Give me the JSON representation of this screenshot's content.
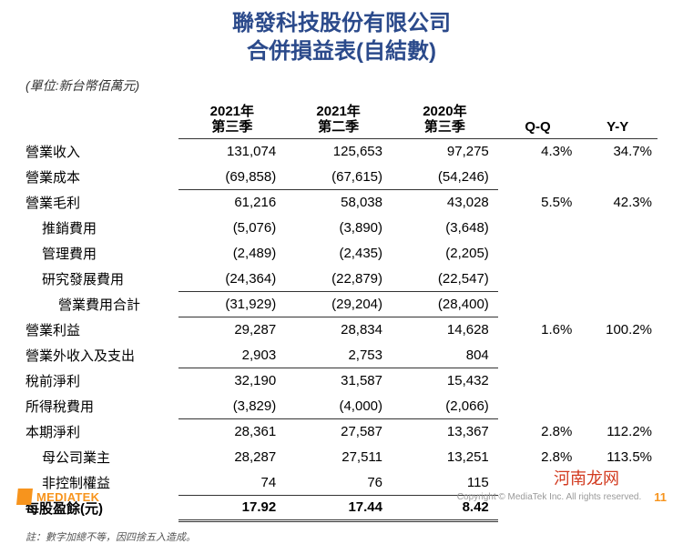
{
  "title": {
    "line1": "聯發科技股份有限公司",
    "line2": "合併損益表(自結數)"
  },
  "unit_label": "(單位:新台幣佰萬元)",
  "columns": {
    "c1": "2021年\n第三季",
    "c2": "2021年\n第二季",
    "c3": "2020年\n第三季",
    "qq": "Q-Q",
    "yy": "Y-Y"
  },
  "rows": [
    {
      "label": "營業收入",
      "indent": 0,
      "v": [
        "131,074",
        "125,653",
        "97,275"
      ],
      "qq": "4.3%",
      "yy": "34.7%",
      "underline": false
    },
    {
      "label": "營業成本",
      "indent": 0,
      "v": [
        "(69,858)",
        "(67,615)",
        "(54,246)"
      ],
      "qq": "",
      "yy": "",
      "underline": true
    },
    {
      "label": "營業毛利",
      "indent": 0,
      "v": [
        "61,216",
        "58,038",
        "43,028"
      ],
      "qq": "5.5%",
      "yy": "42.3%",
      "underline": false
    },
    {
      "label": "推銷費用",
      "indent": 1,
      "v": [
        "(5,076)",
        "(3,890)",
        "(3,648)"
      ],
      "qq": "",
      "yy": "",
      "underline": false
    },
    {
      "label": "管理費用",
      "indent": 1,
      "v": [
        "(2,489)",
        "(2,435)",
        "(2,205)"
      ],
      "qq": "",
      "yy": "",
      "underline": false
    },
    {
      "label": "研究發展費用",
      "indent": 1,
      "v": [
        "(24,364)",
        "(22,879)",
        "(22,547)"
      ],
      "qq": "",
      "yy": "",
      "underline": true
    },
    {
      "label": "營業費用合計",
      "indent": 2,
      "v": [
        "(31,929)",
        "(29,204)",
        "(28,400)"
      ],
      "qq": "",
      "yy": "",
      "underline": true
    },
    {
      "label": "營業利益",
      "indent": 0,
      "v": [
        "29,287",
        "28,834",
        "14,628"
      ],
      "qq": "1.6%",
      "yy": "100.2%",
      "underline": false
    },
    {
      "label": "營業外收入及支出",
      "indent": 0,
      "v": [
        "2,903",
        "2,753",
        "804"
      ],
      "qq": "",
      "yy": "",
      "underline": true
    },
    {
      "label": "稅前淨利",
      "indent": 0,
      "v": [
        "32,190",
        "31,587",
        "15,432"
      ],
      "qq": "",
      "yy": "",
      "underline": false
    },
    {
      "label": "所得稅費用",
      "indent": 0,
      "v": [
        "(3,829)",
        "(4,000)",
        "(2,066)"
      ],
      "qq": "",
      "yy": "",
      "underline": true
    },
    {
      "label": "本期淨利",
      "indent": 0,
      "v": [
        "28,361",
        "27,587",
        "13,367"
      ],
      "qq": "2.8%",
      "yy": "112.2%",
      "underline": false
    },
    {
      "label": "母公司業主",
      "indent": 1,
      "v": [
        "28,287",
        "27,511",
        "13,251"
      ],
      "qq": "2.8%",
      "yy": "113.5%",
      "underline": false
    },
    {
      "label": "非控制權益",
      "indent": 1,
      "v": [
        "74",
        "76",
        "115"
      ],
      "qq": "",
      "yy": "",
      "underline": false
    }
  ],
  "total_row": {
    "label": "每股盈餘(元)",
    "v": [
      "17.92",
      "17.44",
      "8.42"
    ]
  },
  "footnote": "註：數字加總不等，因四捨五入造成。",
  "footer": {
    "logo_text": "MEDIATEK",
    "copyright": "Copyright © MediaTek Inc. All rights reserved.",
    "page": "11"
  },
  "watermark": "河南龙网",
  "style": {
    "title_color": "#2b4a8b",
    "accent_color": "#f7941d",
    "watermark_color": "#d23a1f",
    "text_color": "#333333",
    "background_color": "#ffffff",
    "title_fontsize_pt": 18,
    "body_fontsize_pt": 11
  }
}
